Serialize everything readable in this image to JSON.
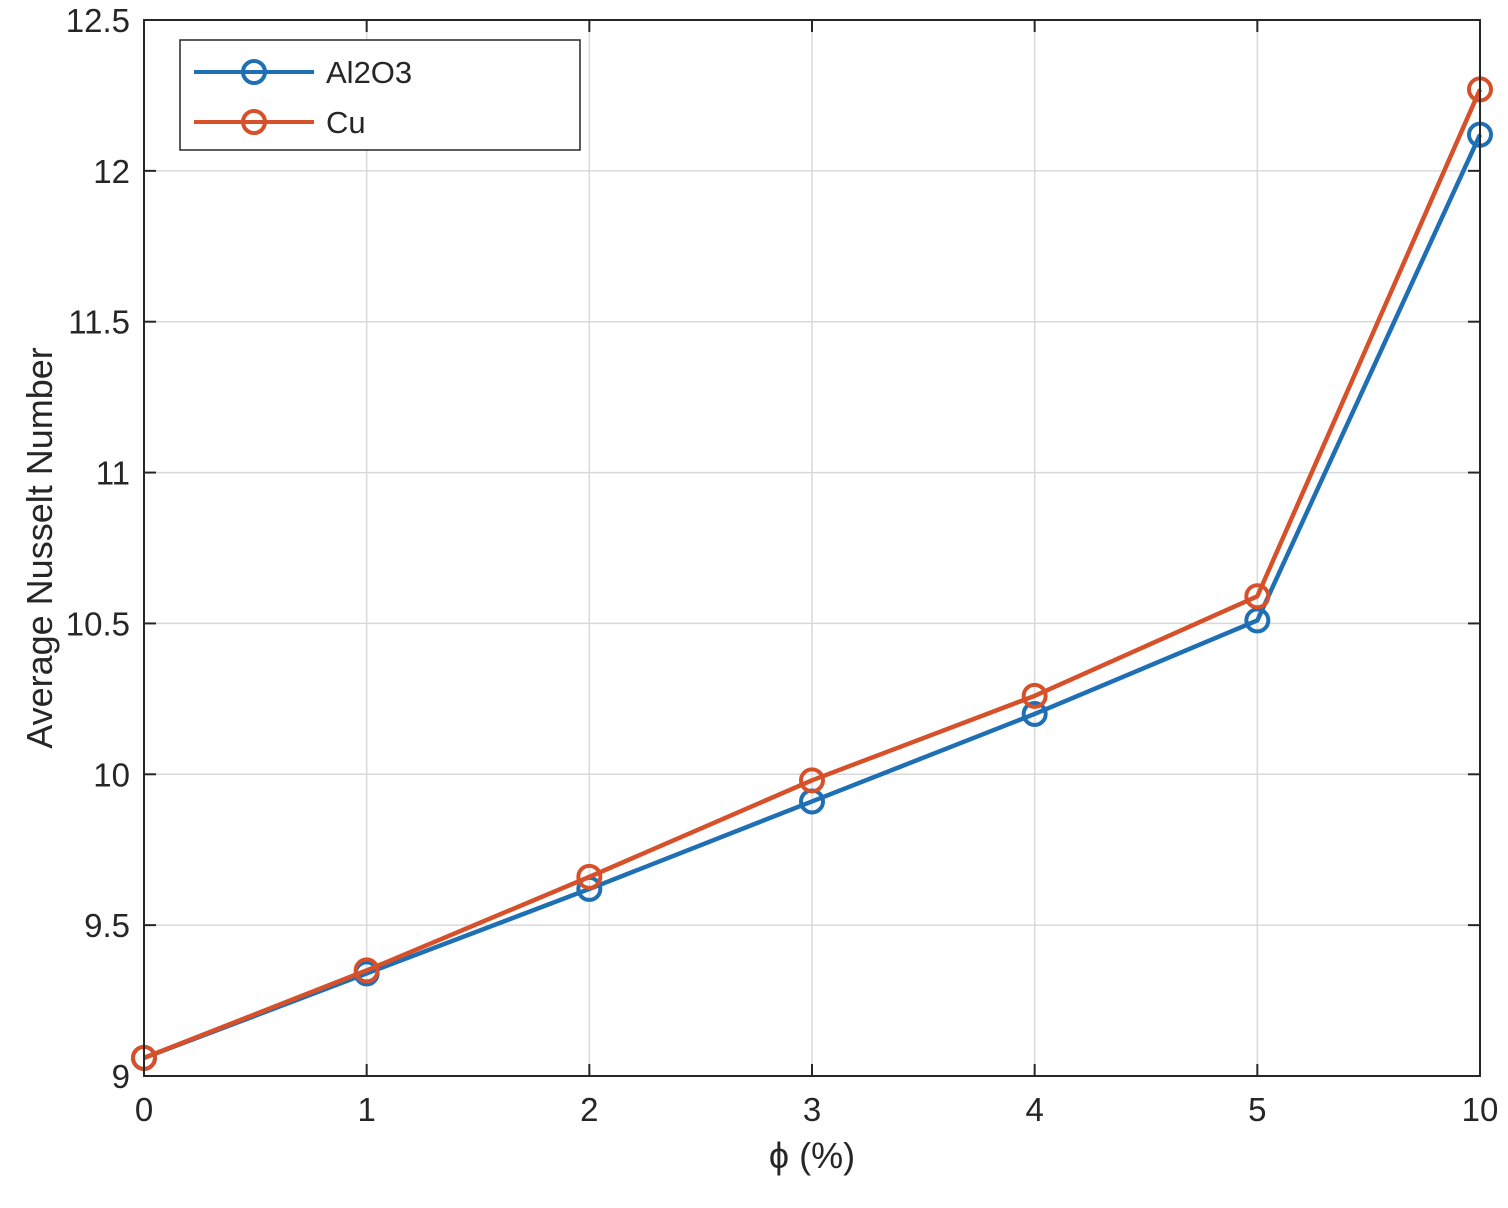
{
  "chart_data": {
    "type": "line",
    "title": "",
    "xlabel": "ϕ (%)",
    "ylabel": "Average Nusselt Number",
    "categories": [
      "0",
      "1",
      "2",
      "3",
      "4",
      "5",
      "10"
    ],
    "ylim": [
      9,
      12.5
    ],
    "yticks": [
      "9",
      "9.5",
      "10",
      "10.5",
      "11",
      "11.5",
      "12",
      "12.5"
    ],
    "grid": true,
    "legend_position": "top-left",
    "series": [
      {
        "name": "Al2O3",
        "color": "#1f6fb5",
        "marker": "circle",
        "values": [
          9.06,
          9.34,
          9.62,
          9.91,
          10.2,
          10.51,
          12.12
        ]
      },
      {
        "name": "Cu",
        "color": "#d6502a",
        "marker": "circle",
        "values": [
          9.06,
          9.35,
          9.66,
          9.98,
          10.26,
          10.59,
          12.27
        ]
      }
    ]
  }
}
